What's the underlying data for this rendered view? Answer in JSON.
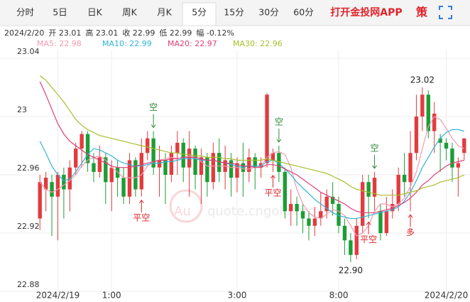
{
  "tabs": [
    {
      "label": "分时"
    },
    {
      "label": "5日"
    },
    {
      "label": "日K"
    },
    {
      "label": "周K"
    },
    {
      "label": "月K"
    },
    {
      "label": "5分",
      "selected": true
    },
    {
      "label": "15分"
    },
    {
      "label": "30分"
    },
    {
      "label": "60分"
    }
  ],
  "app_link": "打开金投网APP",
  "strategy": "策",
  "info": [
    "2024/2/20",
    "开 23.01",
    "高 23.01",
    "收 22.99",
    "低 22.99",
    "幅 -0.12%"
  ],
  "watermark": [
    "Au",
    "quote.cngold.org"
  ],
  "chart_data": {
    "type": "candlestick",
    "up_color": "#e23b3f",
    "down_color": "#1c9d36",
    "grid": true,
    "ylim": [
      22.88,
      23.04
    ],
    "yticks": [
      22.88,
      22.92,
      22.96,
      23,
      23.04
    ],
    "categories": [
      null,
      null,
      null,
      "2024/2/19",
      null,
      null,
      null,
      null,
      null,
      null,
      null,
      null,
      "1:00",
      null,
      null,
      null,
      null,
      null,
      null,
      null,
      null,
      null,
      null,
      null,
      null,
      null,
      null,
      null,
      null,
      null,
      null,
      null,
      null,
      "3:00",
      null,
      null,
      null,
      null,
      null,
      null,
      null,
      null,
      null,
      null,
      null,
      null,
      null,
      null,
      null,
      null,
      "8:00",
      null,
      null,
      null,
      null,
      null,
      null,
      null,
      null,
      null,
      null,
      null,
      null,
      null,
      null,
      null,
      null,
      null,
      "2024/2/20",
      null,
      null,
      null
    ],
    "candles": [
      [
        22.93,
        22.96,
        22.922,
        22.955
      ],
      [
        22.95,
        22.962,
        22.935,
        22.958
      ],
      [
        22.955,
        22.96,
        22.918,
        22.945
      ],
      [
        22.945,
        22.962,
        22.915,
        22.96
      ],
      [
        22.96,
        22.965,
        22.93,
        22.95
      ],
      [
        22.95,
        22.97,
        22.935,
        22.965
      ],
      [
        22.965,
        22.982,
        22.96,
        22.978
      ],
      [
        22.978,
        22.99,
        22.965,
        22.988
      ],
      [
        22.988,
        22.99,
        22.962,
        22.968
      ],
      [
        22.968,
        22.975,
        22.955,
        22.962
      ],
      [
        22.962,
        22.98,
        22.958,
        22.972
      ],
      [
        22.972,
        22.975,
        22.94,
        22.955
      ],
      [
        22.955,
        22.97,
        22.935,
        22.965
      ],
      [
        22.965,
        22.97,
        22.945,
        22.958
      ],
      [
        22.958,
        22.965,
        22.94,
        22.945
      ],
      [
        22.945,
        22.975,
        22.94,
        22.97
      ],
      [
        22.97,
        22.972,
        22.945,
        22.95
      ],
      [
        22.95,
        22.985,
        22.945,
        22.975
      ],
      [
        22.975,
        22.99,
        22.97,
        22.985
      ],
      [
        22.985,
        22.99,
        22.96,
        22.965
      ],
      [
        22.965,
        22.98,
        22.945,
        22.97
      ],
      [
        22.97,
        22.975,
        22.94,
        22.96
      ],
      [
        22.96,
        22.98,
        22.955,
        22.975
      ],
      [
        22.975,
        22.99,
        22.96,
        22.982
      ],
      [
        22.982,
        22.985,
        22.955,
        22.965
      ],
      [
        22.965,
        22.99,
        22.945,
        22.978
      ],
      [
        22.978,
        22.98,
        22.95,
        22.96
      ],
      [
        22.96,
        22.978,
        22.94,
        22.972
      ],
      [
        22.972,
        22.975,
        22.945,
        22.955
      ],
      [
        22.955,
        22.982,
        22.95,
        22.975
      ],
      [
        22.975,
        22.985,
        22.955,
        22.962
      ],
      [
        22.962,
        22.98,
        22.95,
        22.97
      ],
      [
        22.97,
        22.975,
        22.945,
        22.958
      ],
      [
        22.958,
        22.972,
        22.948,
        22.968
      ],
      [
        22.968,
        22.982,
        22.945,
        22.962
      ],
      [
        22.962,
        22.978,
        22.955,
        22.972
      ],
      [
        22.972,
        22.975,
        22.95,
        22.965
      ],
      [
        22.965,
        22.972,
        22.958,
        22.968
      ],
      [
        22.968,
        23.016,
        22.965,
        23.015
      ],
      [
        22.97,
        22.978,
        22.962,
        22.975
      ],
      [
        22.975,
        22.98,
        22.955,
        22.962
      ],
      [
        22.962,
        22.965,
        22.93,
        22.935
      ],
      [
        22.935,
        22.95,
        22.925,
        22.94
      ],
      [
        22.94,
        22.945,
        22.925,
        22.935
      ],
      [
        22.935,
        22.94,
        22.92,
        22.93
      ],
      [
        22.93,
        22.935,
        22.915,
        22.925
      ],
      [
        22.925,
        22.938,
        22.918,
        22.93
      ],
      [
        22.93,
        22.948,
        22.925,
        22.935
      ],
      [
        22.935,
        22.95,
        22.93,
        22.945
      ],
      [
        22.945,
        22.955,
        22.932,
        22.94
      ],
      [
        22.94,
        22.945,
        22.92,
        22.925
      ],
      [
        22.925,
        22.93,
        22.905,
        22.915
      ],
      [
        22.915,
        22.92,
        22.9,
        22.905
      ],
      [
        22.905,
        22.93,
        22.902,
        22.925
      ],
      [
        22.925,
        22.96,
        22.92,
        22.955
      ],
      [
        22.955,
        22.96,
        22.93,
        22.945
      ],
      [
        22.945,
        22.962,
        22.935,
        22.958
      ],
      [
        22.935,
        22.94,
        22.915,
        22.92
      ],
      [
        22.92,
        22.945,
        22.918,
        22.935
      ],
      [
        22.935,
        22.95,
        22.93,
        22.94
      ],
      [
        22.94,
        22.965,
        22.935,
        22.96
      ],
      [
        22.96,
        22.975,
        22.945,
        22.955
      ],
      [
        22.955,
        22.99,
        22.935,
        22.975
      ],
      [
        22.975,
        23.015,
        22.97,
        23.0
      ],
      [
        23.0,
        23.02,
        22.99,
        23.015
      ],
      [
        23.015,
        23.018,
        22.985,
        22.99
      ],
      [
        22.99,
        23.01,
        22.975,
        23.002
      ],
      [
        22.985,
        22.988,
        22.962,
        22.982
      ],
      [
        22.982,
        22.985,
        22.97,
        22.978
      ],
      [
        22.978,
        22.982,
        22.955,
        22.965
      ],
      [
        22.965,
        22.972,
        22.945,
        22.968
      ],
      [
        22.975,
        22.985,
        22.97,
        22.985
      ]
    ],
    "signals": [
      null,
      null,
      null,
      null,
      null,
      null,
      null,
      null,
      null,
      null,
      null,
      null,
      null,
      null,
      null,
      null,
      null,
      "平空",
      null,
      "空",
      null,
      null,
      null,
      null,
      null,
      null,
      null,
      null,
      null,
      null,
      null,
      null,
      null,
      null,
      null,
      null,
      null,
      null,
      null,
      "平空",
      "空",
      null,
      null,
      null,
      null,
      null,
      null,
      null,
      null,
      null,
      null,
      null,
      null,
      null,
      null,
      "平空",
      "空",
      null,
      null,
      null,
      null,
      null,
      "多",
      null,
      null,
      null,
      null,
      null,
      null,
      null,
      null,
      null
    ],
    "high_label": 23.02,
    "low_label": {
      "value": 22.9,
      "label": "22.90"
    },
    "series": [
      {
        "name": "MA5: 22.98",
        "color": "#f29ab2",
        "values": [
          22.955,
          22.95,
          22.948,
          22.95,
          22.953,
          22.956,
          22.96,
          22.966,
          22.97,
          22.972,
          22.973,
          22.97,
          22.965,
          22.962,
          22.958,
          22.958,
          22.958,
          22.96,
          22.966,
          22.969,
          22.97,
          22.971,
          22.972,
          22.971,
          22.972,
          22.973,
          22.972,
          22.969,
          22.966,
          22.966,
          22.966,
          22.966,
          22.965,
          22.965,
          22.964,
          22.964,
          22.965,
          22.966,
          22.972,
          22.975,
          22.976,
          22.974,
          22.965,
          22.95,
          22.94,
          22.934,
          22.931,
          22.93,
          22.933,
          22.936,
          22.935,
          22.932,
          22.925,
          22.918,
          22.92,
          22.925,
          22.935,
          22.94,
          22.94,
          22.938,
          22.94,
          22.944,
          22.952,
          22.962,
          22.978,
          22.993,
          23.0,
          22.998,
          22.992,
          22.985,
          22.98,
          22.978
        ]
      },
      {
        "name": "MA10: 22.99",
        "color": "#33b4d4",
        "values": [
          22.983,
          22.975,
          22.966,
          22.96,
          22.956,
          22.957,
          22.962,
          22.968,
          22.974,
          22.978,
          22.977,
          22.975,
          22.973,
          22.97,
          22.968,
          22.967,
          22.966,
          22.966,
          22.967,
          22.968,
          22.968,
          22.969,
          22.969,
          22.97,
          22.971,
          22.971,
          22.971,
          22.97,
          22.97,
          22.97,
          22.969,
          22.968,
          22.967,
          22.966,
          22.965,
          22.966,
          22.966,
          22.966,
          22.969,
          22.97,
          22.968,
          22.964,
          22.96,
          22.955,
          22.951,
          22.947,
          22.943,
          22.94,
          22.937,
          22.934,
          22.932,
          22.931,
          22.93,
          22.93,
          22.931,
          22.932,
          22.933,
          22.934,
          22.935,
          22.936,
          22.938,
          22.942,
          22.948,
          22.956,
          22.965,
          22.972,
          22.979,
          22.985,
          22.989,
          22.991,
          22.991,
          22.99
        ]
      },
      {
        "name": "MA20: 22.97",
        "color": "#df3f78",
        "values": [
          23.024,
          23.015,
          23.005,
          22.995,
          22.988,
          22.983,
          22.98,
          22.977,
          22.974,
          22.972,
          22.97,
          22.968,
          22.966,
          22.965,
          22.965,
          22.965,
          22.966,
          22.967,
          22.968,
          22.969,
          22.97,
          22.97,
          22.971,
          22.971,
          22.972,
          22.972,
          22.972,
          22.971,
          22.97,
          22.97,
          22.969,
          22.968,
          22.968,
          22.967,
          22.966,
          22.966,
          22.965,
          22.965,
          22.967,
          22.967,
          22.966,
          22.964,
          22.962,
          22.96,
          22.957,
          22.954,
          22.951,
          22.948,
          22.946,
          22.944,
          22.942,
          22.94,
          22.937,
          22.935,
          22.934,
          22.934,
          22.934,
          22.935,
          22.936,
          22.937,
          22.939,
          22.941,
          22.944,
          22.948,
          22.953,
          22.956,
          22.96,
          22.963,
          22.966,
          22.968,
          22.969,
          22.97
        ]
      },
      {
        "name": "MA30: 22.96",
        "color": "#a6bf2a",
        "values": [
          23.028,
          23.025,
          23.02,
          23.015,
          23.01,
          23.004,
          22.998,
          22.994,
          22.991,
          22.989,
          22.987,
          22.986,
          22.985,
          22.984,
          22.983,
          22.982,
          22.981,
          22.98,
          22.979,
          22.978,
          22.977,
          22.976,
          22.975,
          22.975,
          22.974,
          22.974,
          22.973,
          22.973,
          22.972,
          22.972,
          22.972,
          22.971,
          22.971,
          22.97,
          22.97,
          22.97,
          22.97,
          22.97,
          22.971,
          22.97,
          22.969,
          22.968,
          22.967,
          22.966,
          22.965,
          22.964,
          22.963,
          22.962,
          22.961,
          22.959,
          22.957,
          22.955,
          22.952,
          22.95,
          22.949,
          22.948,
          22.947,
          22.946,
          22.946,
          22.946,
          22.946,
          22.947,
          22.948,
          22.949,
          22.951,
          22.952,
          22.953,
          22.955,
          22.956,
          22.957,
          22.958,
          22.96
        ]
      }
    ]
  }
}
